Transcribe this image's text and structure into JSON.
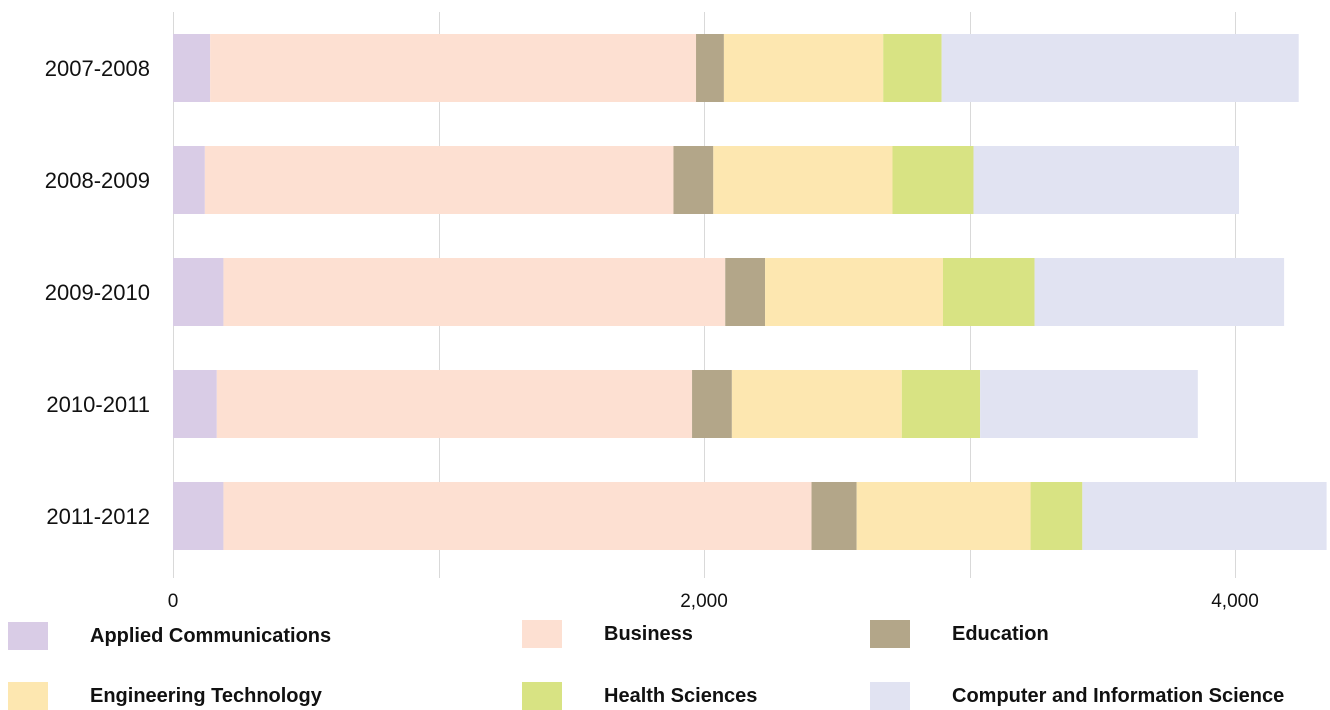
{
  "chart_data": {
    "type": "bar",
    "orientation": "horizontal",
    "stacked": true,
    "title": "",
    "xlabel": "",
    "ylabel": "",
    "categories": [
      "2007-2008",
      "2008-2009",
      "2009-2010",
      "2010-2011",
      "2011-2012"
    ],
    "series": [
      {
        "name": "Applied Communications",
        "color": "#d9cce6",
        "values": [
          140,
          120,
          190,
          165,
          190
        ]
      },
      {
        "name": "Business",
        "color": "#fde0d2",
        "values": [
          1830,
          1765,
          1890,
          1790,
          2215
        ]
      },
      {
        "name": "Education",
        "color": "#b3a689",
        "values": [
          105,
          150,
          150,
          150,
          170
        ]
      },
      {
        "name": "Engineering Technology",
        "color": "#fde7b0",
        "values": [
          600,
          675,
          670,
          640,
          655
        ]
      },
      {
        "name": "Health Sciences",
        "color": "#d8e383",
        "values": [
          220,
          305,
          345,
          295,
          195
        ]
      },
      {
        "name": "Computer and Information Science",
        "color": "#e1e3f2",
        "values": [
          1345,
          1000,
          940,
          820,
          920
        ]
      }
    ],
    "xlim": [
      0,
      4360
    ],
    "x_ticks": [
      0,
      2000,
      4000
    ],
    "x_tick_labels": [
      "0",
      "2,000",
      "4,000"
    ],
    "grid": true,
    "gridline_values": [
      0,
      1000,
      2000,
      3000,
      4000
    ],
    "legend_position": "bottom"
  }
}
